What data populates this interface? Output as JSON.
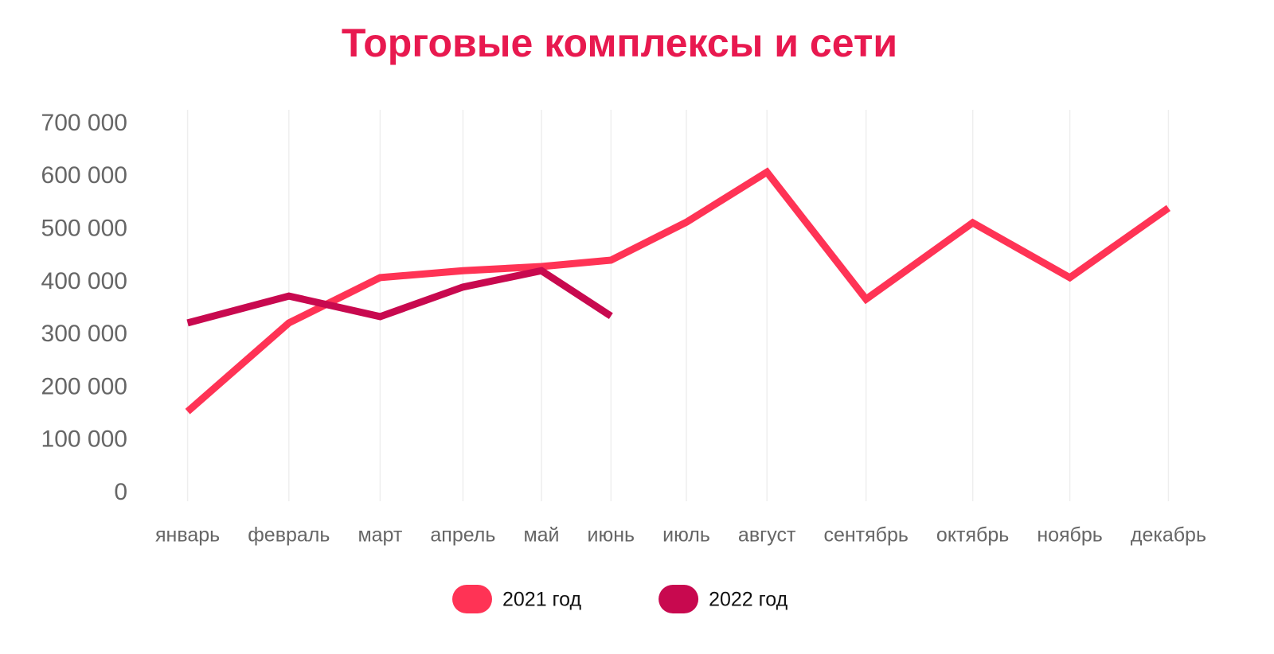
{
  "chart_data": {
    "type": "line",
    "title": "Торговые комплексы и сети",
    "categories": [
      "январь",
      "февраль",
      "март",
      "апрель",
      "май",
      "июнь",
      "июль",
      "август",
      "сентябрь",
      "октябрь",
      "ноябрь",
      "декабрь"
    ],
    "series": [
      {
        "name": "2021 год",
        "color": "#ff3355",
        "values": [
          155000,
          323000,
          409000,
          422000,
          430000,
          442000,
          514000,
          609000,
          368000,
          513000,
          409000,
          541000
        ]
      },
      {
        "name": "2022 год",
        "color": "#c8094f",
        "values": [
          323000,
          374000,
          335000,
          391000,
          422000,
          336000,
          null,
          null,
          null,
          null,
          null,
          null
        ]
      }
    ],
    "ylim": [
      0,
      700000
    ],
    "yticks": [
      0,
      {
        "value": 100000,
        "label": "100 000"
      },
      {
        "value": 200000,
        "label": "200 000"
      },
      {
        "value": 300000,
        "label": "300 000"
      },
      {
        "value": 400000,
        "label": "400 000"
      },
      {
        "value": 500000,
        "label": "500 000"
      },
      {
        "value": 600000,
        "label": "600 000"
      },
      {
        "value": 700000,
        "label": "700 000"
      }
    ],
    "grid": true,
    "legend": "bottom"
  }
}
